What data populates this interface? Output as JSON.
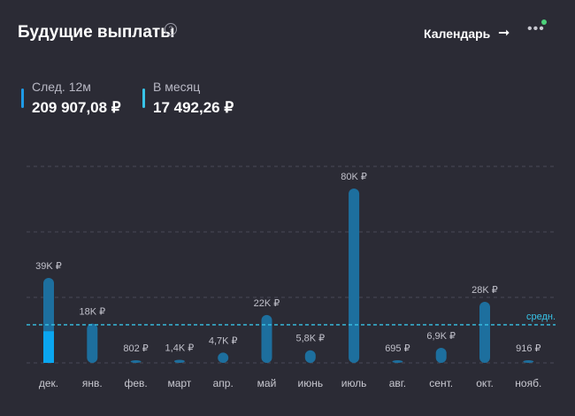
{
  "header": {
    "title": "Будущие выплаты",
    "help_icon": "question-circle-icon",
    "calendar_label": "Календарь",
    "arrow_icon": "arrow-right-icon",
    "more_icon": "more-dots-icon",
    "status_dot_color": "#4cd17a"
  },
  "stats": {
    "next12": {
      "label": "След. 12м",
      "value": "209 907,08 ₽",
      "color": "#1e9be8"
    },
    "monthly": {
      "label": "В месяц",
      "value": "17 492,26 ₽",
      "color": "#38c4e8"
    }
  },
  "chart_data": {
    "type": "bar",
    "categories": [
      "дек.",
      "янв.",
      "фев.",
      "март",
      "апр.",
      "май",
      "июнь",
      "июль",
      "авг.",
      "сент.",
      "окт.",
      "нояб."
    ],
    "values": [
      39000,
      18000,
      802,
      1400,
      4700,
      22000,
      5800,
      80000,
      695,
      6900,
      28000,
      916
    ],
    "value_labels": [
      "39K ₽",
      "18K ₽",
      "802 ₽",
      "1,4K ₽",
      "4,7K ₽",
      "22K ₽",
      "5,8K ₽",
      "80K ₽",
      "695 ₽",
      "6,9K ₽",
      "28K ₽",
      "916 ₽"
    ],
    "highlight": {
      "index": 0,
      "value": 14500,
      "color": "#0aa6f0"
    },
    "average": {
      "label": "средн.",
      "value": 17492.26,
      "color": "#38c4e8"
    },
    "bar_color": "#1d6f9e",
    "ylim": [
      0,
      80000
    ],
    "grid": true
  }
}
